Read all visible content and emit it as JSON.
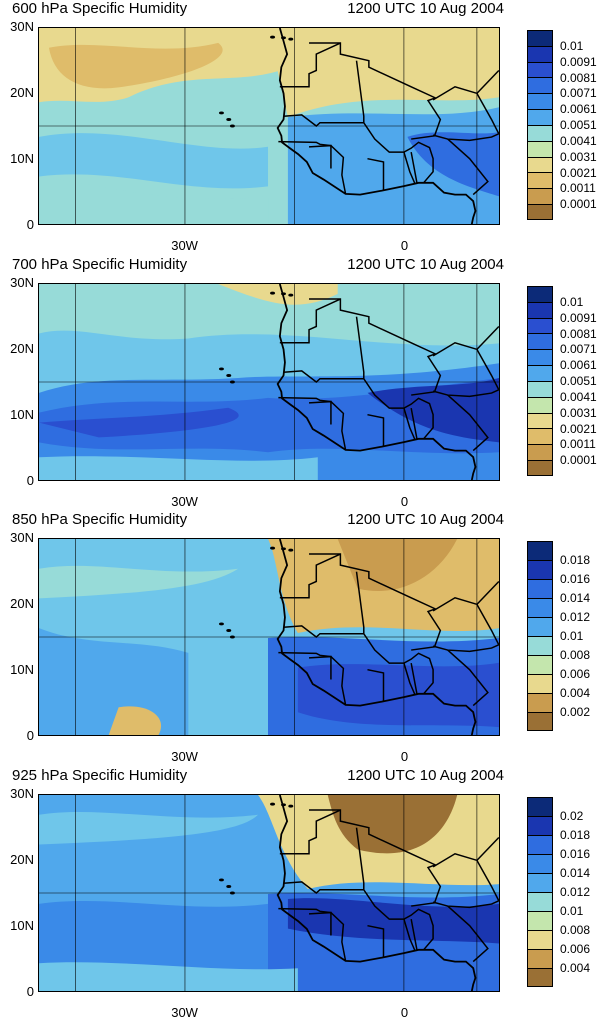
{
  "panels": [
    {
      "title": "600 hPa Specific Humidity",
      "time": "1200 UTC 10 Aug 2004",
      "colorbar": [
        "0.01",
        "0.0091",
        "0.0081",
        "0.0071",
        "0.0061",
        "0.0051",
        "0.0041",
        "0.0031",
        "0.0021",
        "0.0011",
        "0.0001"
      ],
      "pattern": "dry-north",
      "band_color": "#61b8e6",
      "dry_color": "#d9bd6e",
      "moist_core_color": "#2559cc"
    },
    {
      "title": "700 hPa Specific Humidity",
      "time": "1200 UTC 10 Aug 2004",
      "colorbar": [
        "0.01",
        "0.0091",
        "0.0081",
        "0.0071",
        "0.0061",
        "0.0051",
        "0.0041",
        "0.0031",
        "0.0021",
        "0.0011",
        "0.0001"
      ],
      "pattern": "moist-band",
      "band_color": "#3d77da",
      "dry_color": "#c9d28a",
      "moist_core_color": "#1f3fb8"
    },
    {
      "title": "850 hPa Specific Humidity",
      "time": "1200 UTC 10 Aug 2004",
      "colorbar": [
        "0.018",
        "0.016",
        "0.014",
        "0.012",
        "0.01",
        "0.008",
        "0.006",
        "0.004",
        "0.002"
      ],
      "pattern": "sahara-dry",
      "band_color": "#4f9be3",
      "dry_color": "#d4a857",
      "moist_core_color": "#2044c0"
    },
    {
      "title": "925 hPa Specific Humidity",
      "time": "1200 UTC 10 Aug 2004",
      "colorbar": [
        "0.02",
        "0.018",
        "0.016",
        "0.014",
        "0.012",
        "0.01",
        "0.008",
        "0.006",
        "0.004"
      ],
      "pattern": "sahara-very-dry",
      "band_color": "#4b93e0",
      "dry_color": "#a97e3e",
      "moist_core_color": "#1d3bb6"
    }
  ],
  "axes": {
    "y_ticks": [
      "30N",
      "20N",
      "10N",
      "0"
    ],
    "x_ticks": [
      "30W",
      "0"
    ]
  },
  "palette": [
    "#0c2a78",
    "#1a36b0",
    "#2a4fd0",
    "#2f6de0",
    "#3a8ae8",
    "#50a8ec",
    "#6fc6ea",
    "#97dbd8",
    "#c4e6ad",
    "#e8d98e",
    "#dfbc6a",
    "#c99c4f",
    "#9a7035"
  ]
}
